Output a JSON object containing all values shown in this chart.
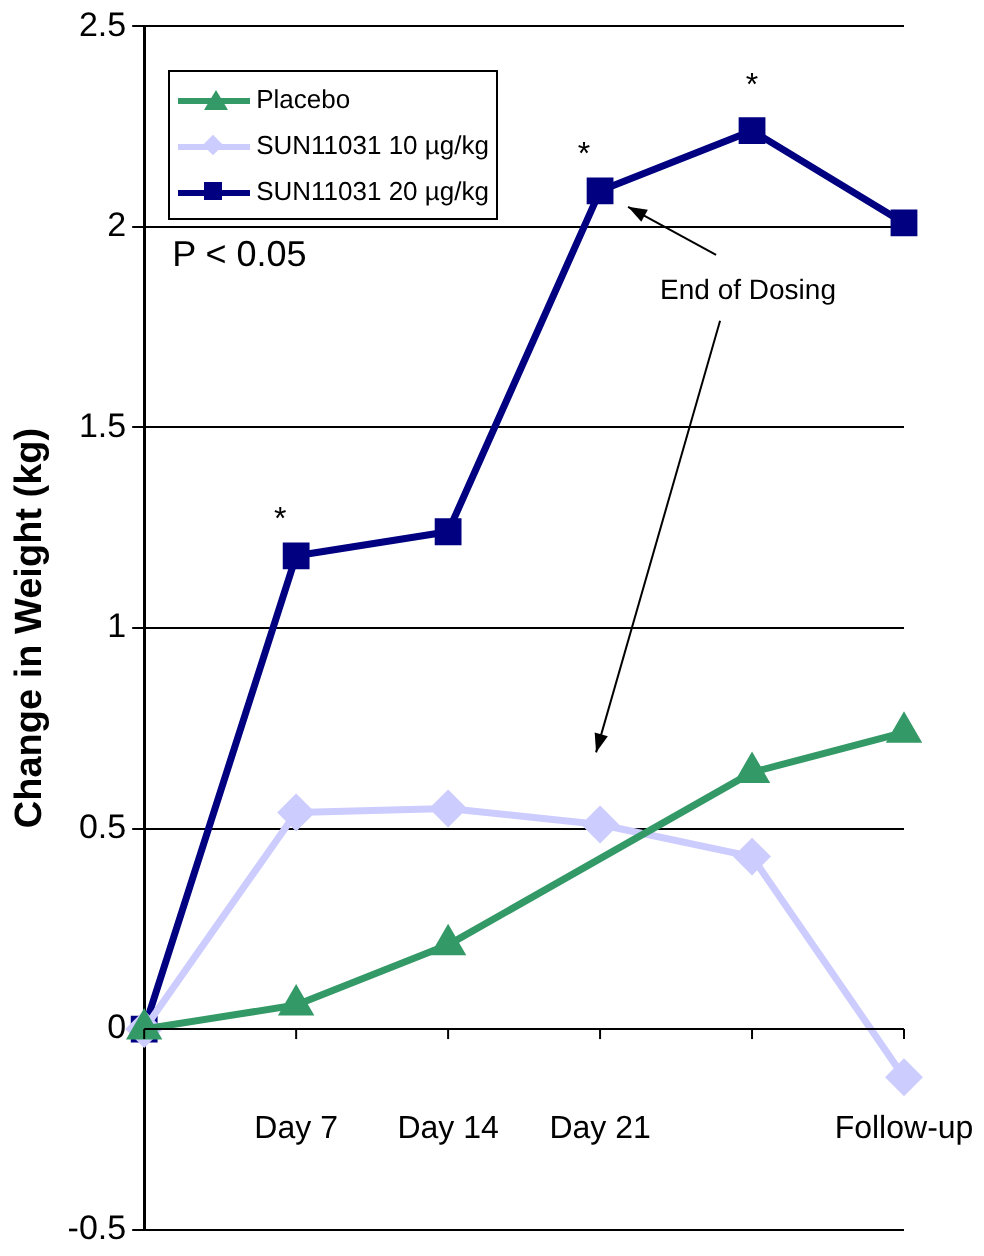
{
  "chart_data": {
    "type": "line",
    "ylabel": "Change in Weight (kg)",
    "categories": [
      null,
      "Day 7",
      "Day 14",
      "Day 21",
      null,
      "Follow-up"
    ],
    "ylim": [
      -0.5,
      2.5
    ],
    "yticks": [
      -0.5,
      0,
      0.5,
      1,
      1.5,
      2,
      2.5
    ],
    "grid": "y",
    "legend": "top left",
    "series": [
      {
        "name": "Placebo",
        "color": "#339966",
        "marker": "triangle",
        "values": [
          0,
          0.06,
          0.21,
          null,
          0.64,
          0.74
        ]
      },
      {
        "name": "SUN11031 10 µg/kg",
        "color": "#ccccff",
        "marker": "diamond",
        "values": [
          0,
          0.54,
          0.55,
          0.51,
          0.43,
          -0.12
        ]
      },
      {
        "name": "SUN11031 20 µg/kg",
        "color": "#000080",
        "marker": "square",
        "values": [
          0,
          1.18,
          1.24,
          2.09,
          2.24,
          2.01
        ]
      }
    ],
    "annotations": [
      {
        "text": "*",
        "x": "Day 7",
        "y": 1.18
      },
      {
        "text": "*",
        "x": "Day 21",
        "y": 2.09
      },
      "*",
      "P < 0.05",
      "End of Dosing"
    ]
  }
}
